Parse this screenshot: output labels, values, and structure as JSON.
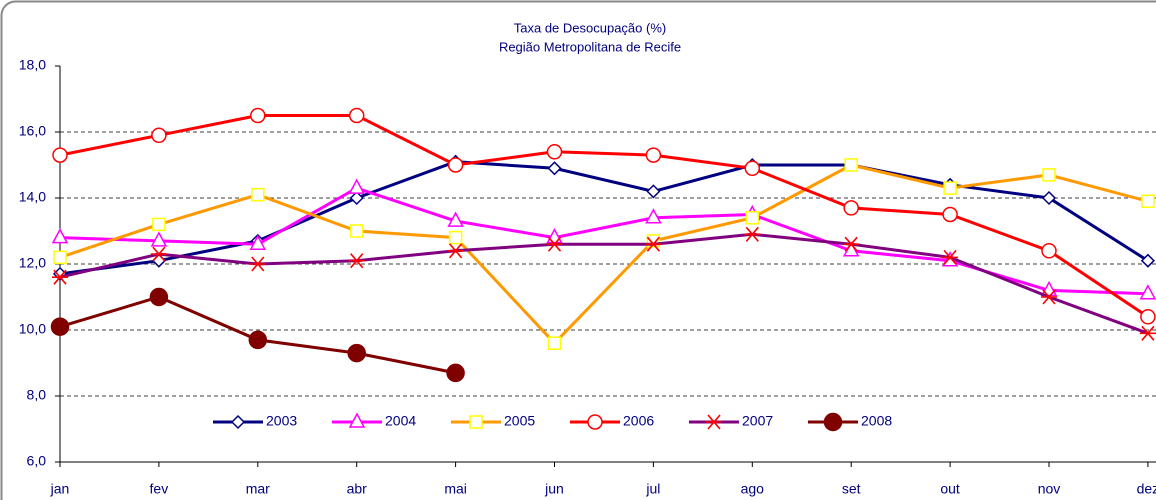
{
  "chart_data": {
    "type": "line",
    "title": "Taxa de Desocupação (%)",
    "subtitle": "Região Metropolitana de Recife",
    "categories": [
      "jan",
      "fev",
      "mar",
      "abr",
      "mai",
      "jun",
      "jul",
      "ago",
      "set",
      "out",
      "nov",
      "dez"
    ],
    "series": [
      {
        "name": "2003",
        "color": "#000080",
        "marker": "diamond",
        "marker_color": "#000080",
        "values": [
          11.7,
          12.1,
          12.7,
          14.0,
          15.1,
          14.9,
          14.2,
          15.0,
          15.0,
          14.4,
          14.0,
          12.1
        ]
      },
      {
        "name": "2004",
        "color": "#ff00ff",
        "marker": "triangle",
        "marker_color": "#ff00ff",
        "values": [
          12.8,
          12.7,
          12.6,
          14.3,
          13.3,
          12.8,
          13.4,
          13.5,
          12.4,
          12.1,
          11.2,
          11.1
        ]
      },
      {
        "name": "2005",
        "color": "#ff9900",
        "marker": "square",
        "marker_color": "#ffff00",
        "values": [
          12.2,
          13.2,
          14.1,
          13.0,
          12.8,
          9.6,
          12.7,
          13.4,
          15.0,
          14.3,
          14.7,
          13.9
        ]
      },
      {
        "name": "2006",
        "color": "#ff0000",
        "marker": "circle",
        "marker_color": "#ff0000",
        "values": [
          15.3,
          15.9,
          16.5,
          16.5,
          15.0,
          15.4,
          15.3,
          14.9,
          13.7,
          13.5,
          12.4,
          10.4
        ]
      },
      {
        "name": "2007",
        "color": "#800080",
        "marker": "star",
        "marker_color": "#ff0000",
        "values": [
          11.6,
          12.3,
          12.0,
          12.1,
          12.4,
          12.6,
          12.6,
          12.9,
          12.6,
          12.2,
          11.0,
          9.9
        ]
      },
      {
        "name": "2008",
        "color": "#800000",
        "marker": "dot",
        "marker_color": "#800000",
        "values": [
          10.1,
          11.0,
          9.7,
          9.3,
          8.7,
          null,
          null,
          null,
          null,
          null,
          null,
          null
        ]
      }
    ],
    "ylim": [
      6,
      18
    ],
    "yticks": [
      {
        "value": 6,
        "label": "6,0"
      },
      {
        "value": 8,
        "label": "8,0"
      },
      {
        "value": 10,
        "label": "10,0"
      },
      {
        "value": 12,
        "label": "12,0"
      },
      {
        "value": 14,
        "label": "14,0"
      },
      {
        "value": 16,
        "label": "16,0"
      },
      {
        "value": 18,
        "label": "18,0"
      }
    ],
    "grid": true,
    "legend": "bottom"
  }
}
